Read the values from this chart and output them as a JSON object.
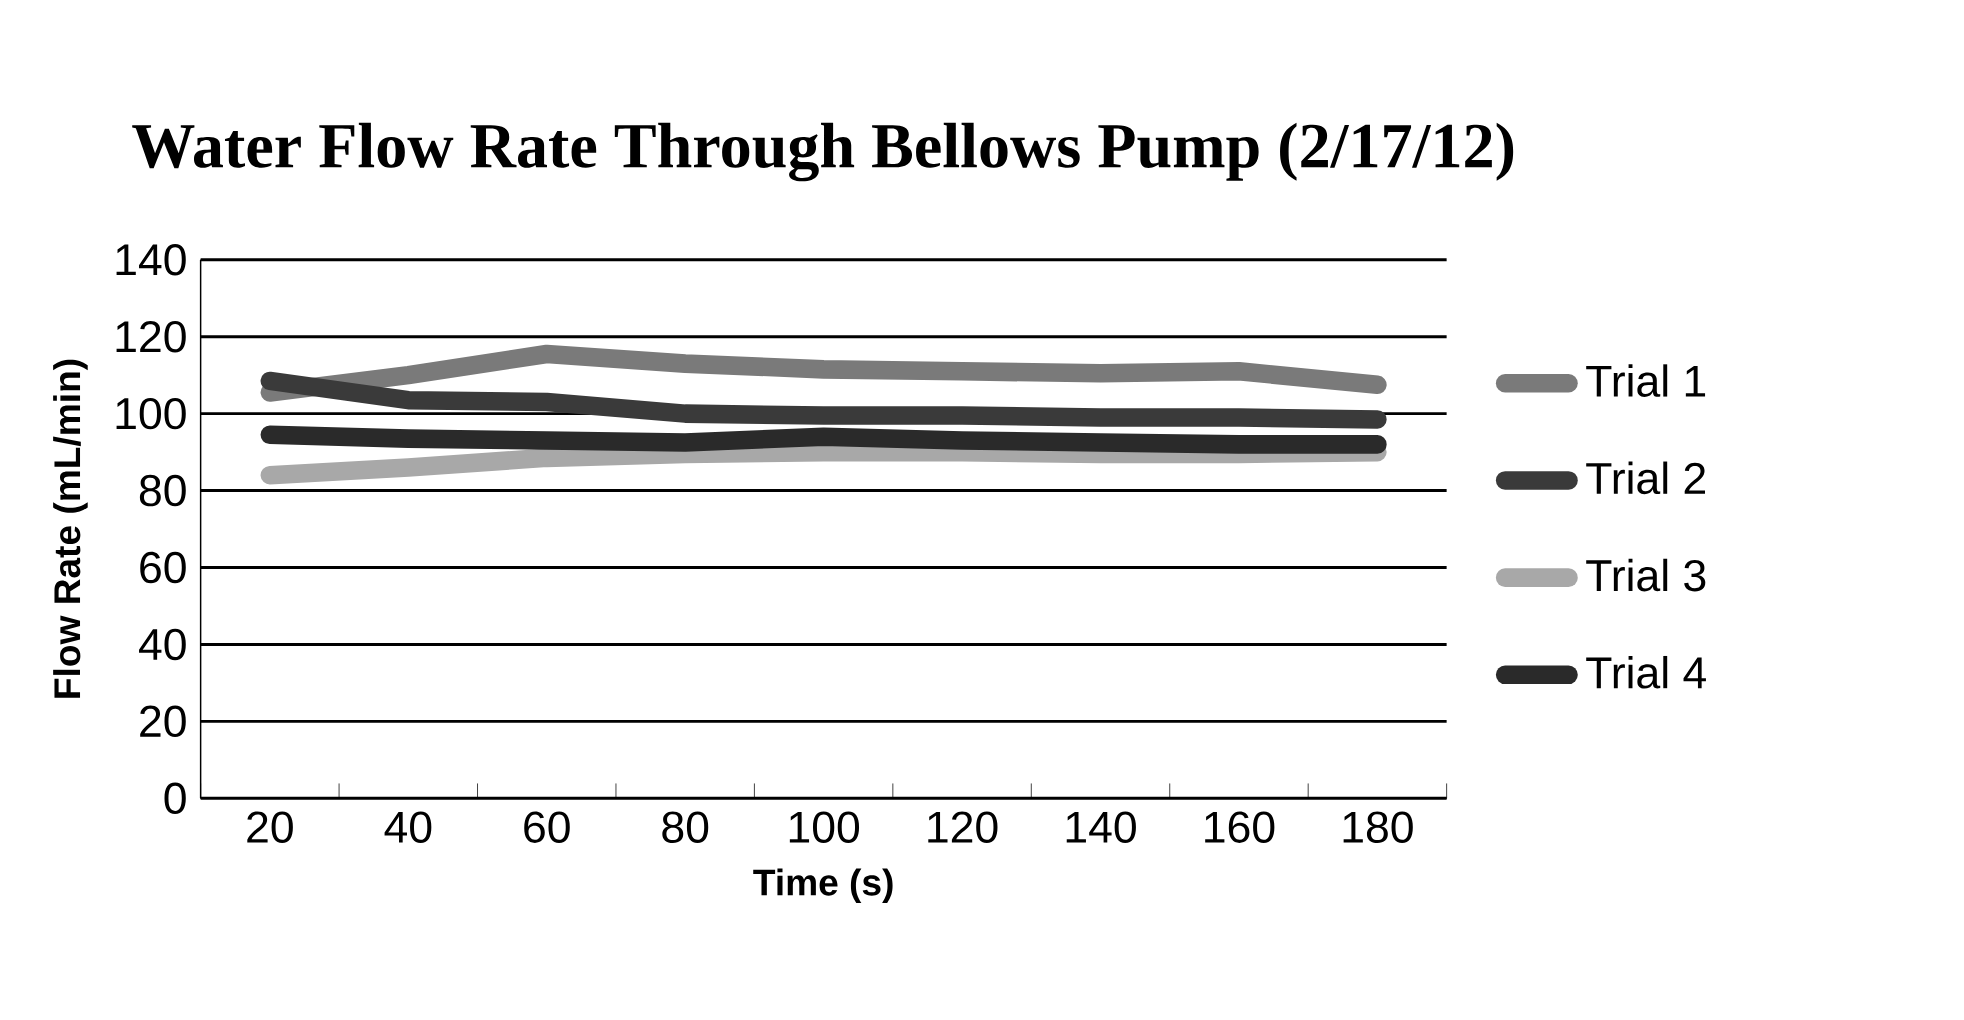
{
  "chart_data": {
    "type": "line",
    "title": "Water Flow Rate Through Bellows Pump (2/17/12)",
    "xlabel": "Time (s)",
    "ylabel": "Flow Rate (mL/min)",
    "categories": [
      "20",
      "40",
      "60",
      "80",
      "100",
      "120",
      "140",
      "160",
      "180"
    ],
    "series": [
      {
        "name": "Trial 1",
        "color": "#7a7a7a",
        "values": [
          105.5,
          110,
          115.5,
          113,
          111.5,
          111,
          110.5,
          111,
          107.5
        ]
      },
      {
        "name": "Trial 2",
        "color": "#3a3a3a",
        "values": [
          108.5,
          103.5,
          103,
          100,
          99.5,
          99.5,
          99,
          99,
          98.5
        ]
      },
      {
        "name": "Trial 3",
        "color": "#a8a8a8",
        "values": [
          84,
          86,
          88.5,
          89.5,
          90,
          90,
          89.5,
          89.5,
          90
        ]
      },
      {
        "name": "Trial 4",
        "color": "#2a2a2a",
        "values": [
          94.5,
          93.5,
          93,
          92.5,
          94,
          93,
          92.5,
          92,
          92
        ]
      }
    ],
    "ylim": [
      0,
      140
    ],
    "yticks": [
      0,
      20,
      40,
      60,
      80,
      100,
      120,
      140
    ],
    "grid": "y",
    "legend": "right",
    "marker": "none",
    "line_style": "solid"
  }
}
